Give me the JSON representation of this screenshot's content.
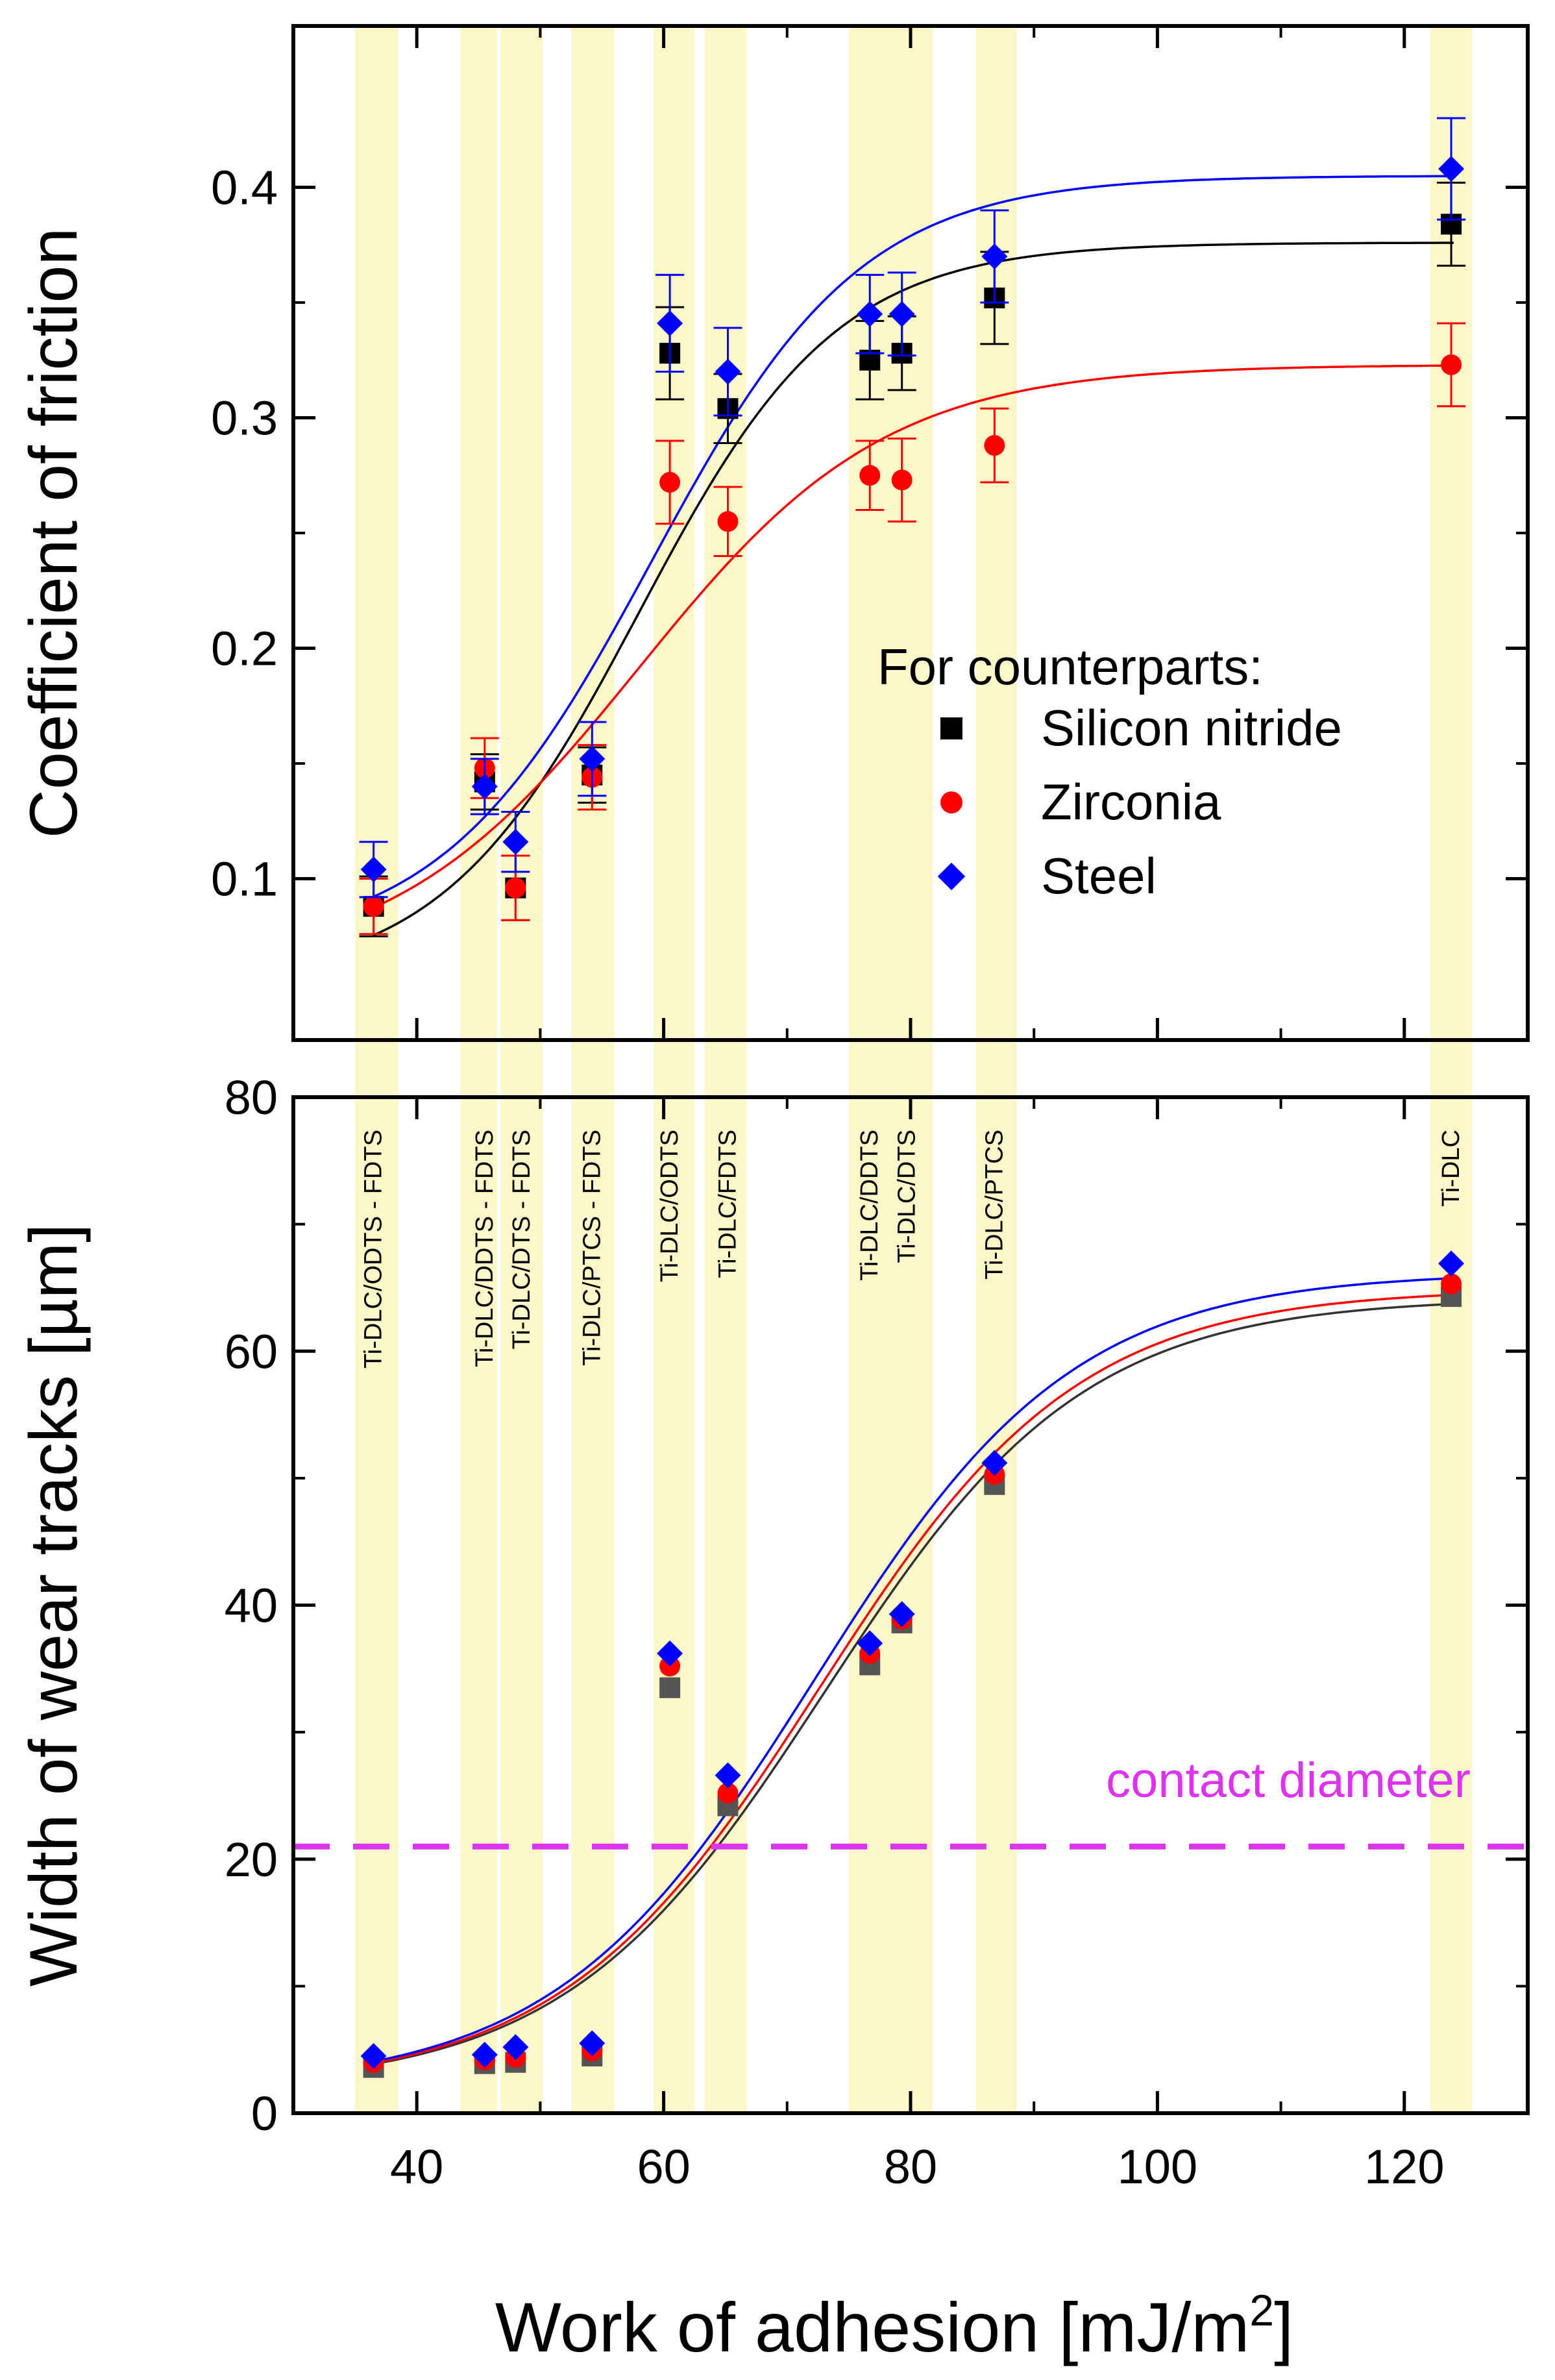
{
  "chart_data": [
    {
      "type": "scatter",
      "title": "",
      "xlabel": "Work of adhesion [mJ/m",
      "xlabel_sup": "2",
      "xlabel_end": "]",
      "ylabel": "Coefficient of friction",
      "xlim": [
        30,
        130
      ],
      "ylim": [
        0.03,
        0.47
      ],
      "xticks": [
        40,
        60,
        80,
        100,
        120
      ],
      "yticks": [
        0.1,
        0.2,
        0.3,
        0.4
      ],
      "ytick_labels": [
        "0.1",
        "0.2",
        "0.3",
        "0.4"
      ],
      "legend": {
        "title": "For counterparts:",
        "placement": "lower-right",
        "entries": [
          "Silicon nitride",
          "Zirconia",
          "Steel"
        ]
      },
      "series": [
        {
          "name": "Silicon nitride",
          "marker": "square",
          "color": "#000000",
          "x": [
            36.5,
            45.5,
            48,
            54.2,
            60.5,
            65.2,
            76.7,
            79.3,
            86.8,
            123.8
          ],
          "y": [
            0.088,
            0.142,
            0.096,
            0.145,
            0.328,
            0.304,
            0.325,
            0.328,
            0.352,
            0.384
          ],
          "err": [
            0.013,
            0.012,
            0.014,
            0.012,
            0.02,
            0.015,
            0.017,
            0.016,
            0.02,
            0.018
          ],
          "fit": {
            "min": 0.055,
            "max": 0.376,
            "x0": 58,
            "w": 8
          }
        },
        {
          "name": "Zirconia",
          "marker": "circle",
          "color": "#ff0000",
          "x": [
            36.5,
            45.5,
            48,
            54.2,
            60.5,
            65.2,
            76.7,
            79.3,
            86.8,
            123.8
          ],
          "y": [
            0.088,
            0.148,
            0.096,
            0.144,
            0.272,
            0.255,
            0.275,
            0.273,
            0.288,
            0.323
          ],
          "err": [
            0.012,
            0.013,
            0.014,
            0.014,
            0.018,
            0.015,
            0.015,
            0.018,
            0.016,
            0.018
          ],
          "fit": {
            "min": 0.06,
            "max": 0.323,
            "x0": 58,
            "w": 10
          }
        },
        {
          "name": "Steel",
          "marker": "diamond",
          "color": "#0000ff",
          "x": [
            36.5,
            45.5,
            48,
            54.2,
            60.5,
            65.2,
            76.7,
            79.3,
            86.8,
            123.8
          ],
          "y": [
            0.104,
            0.14,
            0.116,
            0.152,
            0.341,
            0.32,
            0.345,
            0.345,
            0.37,
            0.408
          ],
          "err": [
            0.012,
            0.012,
            0.013,
            0.016,
            0.021,
            0.019,
            0.017,
            0.018,
            0.02,
            0.022
          ],
          "fit": {
            "min": 0.07,
            "max": 0.405,
            "x0": 59,
            "w": 8.5
          }
        }
      ]
    },
    {
      "type": "scatter",
      "title": "",
      "xlabel": "Work of adhesion [mJ/m",
      "xlabel_sup": "2",
      "xlabel_end": "]",
      "ylabel": "Width of wear tracks [µm]",
      "xlim": [
        30,
        130
      ],
      "ylim": [
        0,
        80
      ],
      "xticks": [
        40,
        60,
        80,
        100,
        120
      ],
      "yticks": [
        0,
        20,
        40,
        60,
        80
      ],
      "annotation": {
        "text": "contact diameter",
        "y": 21,
        "color": "#dd33ee"
      },
      "coating_labels": [
        {
          "x": 36.5,
          "text": "Ti-DLC/ODTS - FDTS"
        },
        {
          "x": 45.5,
          "text": "Ti-DLC/DDTS - FDTS"
        },
        {
          "x": 48.5,
          "text": "Ti-DLC/DTS - FDTS"
        },
        {
          "x": 54.2,
          "text": "Ti-DLC/PTCS - FDTS"
        },
        {
          "x": 60.5,
          "text": "Ti-DLC/ODTS"
        },
        {
          "x": 65.2,
          "text": "Ti-DLC/FDTS"
        },
        {
          "x": 76.7,
          "text": "Ti-DLC/DDTS"
        },
        {
          "x": 79.7,
          "text": "Ti-DLC/DTS"
        },
        {
          "x": 86.8,
          "text": "Ti-DLC/PTCS"
        },
        {
          "x": 123.8,
          "text": "Ti-DLC"
        }
      ],
      "highlight_bands": [
        [
          35,
          38.5
        ],
        [
          43.5,
          46.5
        ],
        [
          46.8,
          50.2
        ],
        [
          52.5,
          56
        ],
        [
          59.2,
          62.5
        ],
        [
          63.3,
          66.7
        ],
        [
          75,
          78.8
        ],
        [
          78.8,
          81.8
        ],
        [
          85.3,
          88.6
        ],
        [
          122.1,
          125.5
        ]
      ],
      "series": [
        {
          "name": "Silicon nitride",
          "marker": "square",
          "color": "#555555",
          "x": [
            36.5,
            45.5,
            48,
            54.2,
            60.5,
            65.2,
            76.7,
            79.3,
            86.8,
            123.8
          ],
          "y": [
            3.6,
            3.9,
            4.0,
            4.5,
            33.5,
            24.2,
            35.3,
            38.6,
            49.5,
            64.3
          ],
          "fit": {
            "min": 2,
            "max": 64.2,
            "x0": 73,
            "w": 10.5
          }
        },
        {
          "name": "Zirconia",
          "marker": "circle",
          "color": "#ff0000",
          "x": [
            36.5,
            45.5,
            48,
            54.2,
            60.5,
            65.2,
            76.7,
            79.3,
            86.8,
            123.8
          ],
          "y": [
            4.0,
            4.2,
            4.4,
            4.9,
            35.2,
            25.2,
            36.2,
            38.9,
            50.3,
            65.3
          ],
          "fit": {
            "min": 2,
            "max": 64.9,
            "x0": 72.6,
            "w": 10.5
          }
        },
        {
          "name": "Steel",
          "marker": "diamond",
          "color": "#0000ff",
          "x": [
            36.5,
            45.5,
            48,
            54.2,
            60.5,
            65.2,
            76.7,
            79.3,
            86.8,
            123.8
          ],
          "y": [
            4.5,
            4.6,
            5.2,
            5.5,
            36.2,
            26.6,
            37.0,
            39.3,
            51.2,
            66.9
          ],
          "fit": {
            "min": 2,
            "max": 66.2,
            "x0": 72.2,
            "w": 10.5
          }
        }
      ]
    }
  ]
}
